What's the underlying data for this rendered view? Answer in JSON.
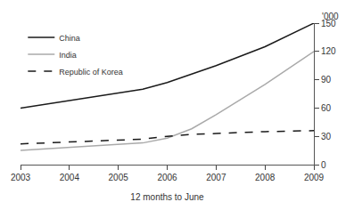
{
  "chart_data": {
    "type": "line",
    "x": [
      2003,
      2004,
      2005,
      2005.5,
      2006,
      2006.5,
      2007,
      2008,
      2009
    ],
    "series": [
      {
        "name": "China",
        "color": "#1a1a1a",
        "line_style": "solid",
        "values": [
          60,
          68,
          76,
          80,
          87,
          96,
          105,
          125,
          150
        ]
      },
      {
        "name": "India",
        "color": "#aaaaaa",
        "line_style": "solid",
        "values": [
          15,
          18,
          21,
          23,
          28,
          38,
          53,
          85,
          120
        ]
      },
      {
        "name": "Republic of Korea",
        "color": "#1a1a1a",
        "line_style": "dashed",
        "values": [
          22,
          24,
          26,
          27,
          30,
          32,
          33,
          35,
          36
        ]
      }
    ],
    "xlabel": "12 months to June",
    "ylabel": "'000",
    "xlim": [
      2003,
      2009
    ],
    "xticks": [
      2003,
      2004,
      2005,
      2006,
      2007,
      2008,
      2009
    ],
    "ylim": [
      0,
      150
    ],
    "yticks": [
      0,
      30,
      60,
      90,
      120,
      150
    ],
    "grid": false,
    "legend": "upper left"
  }
}
